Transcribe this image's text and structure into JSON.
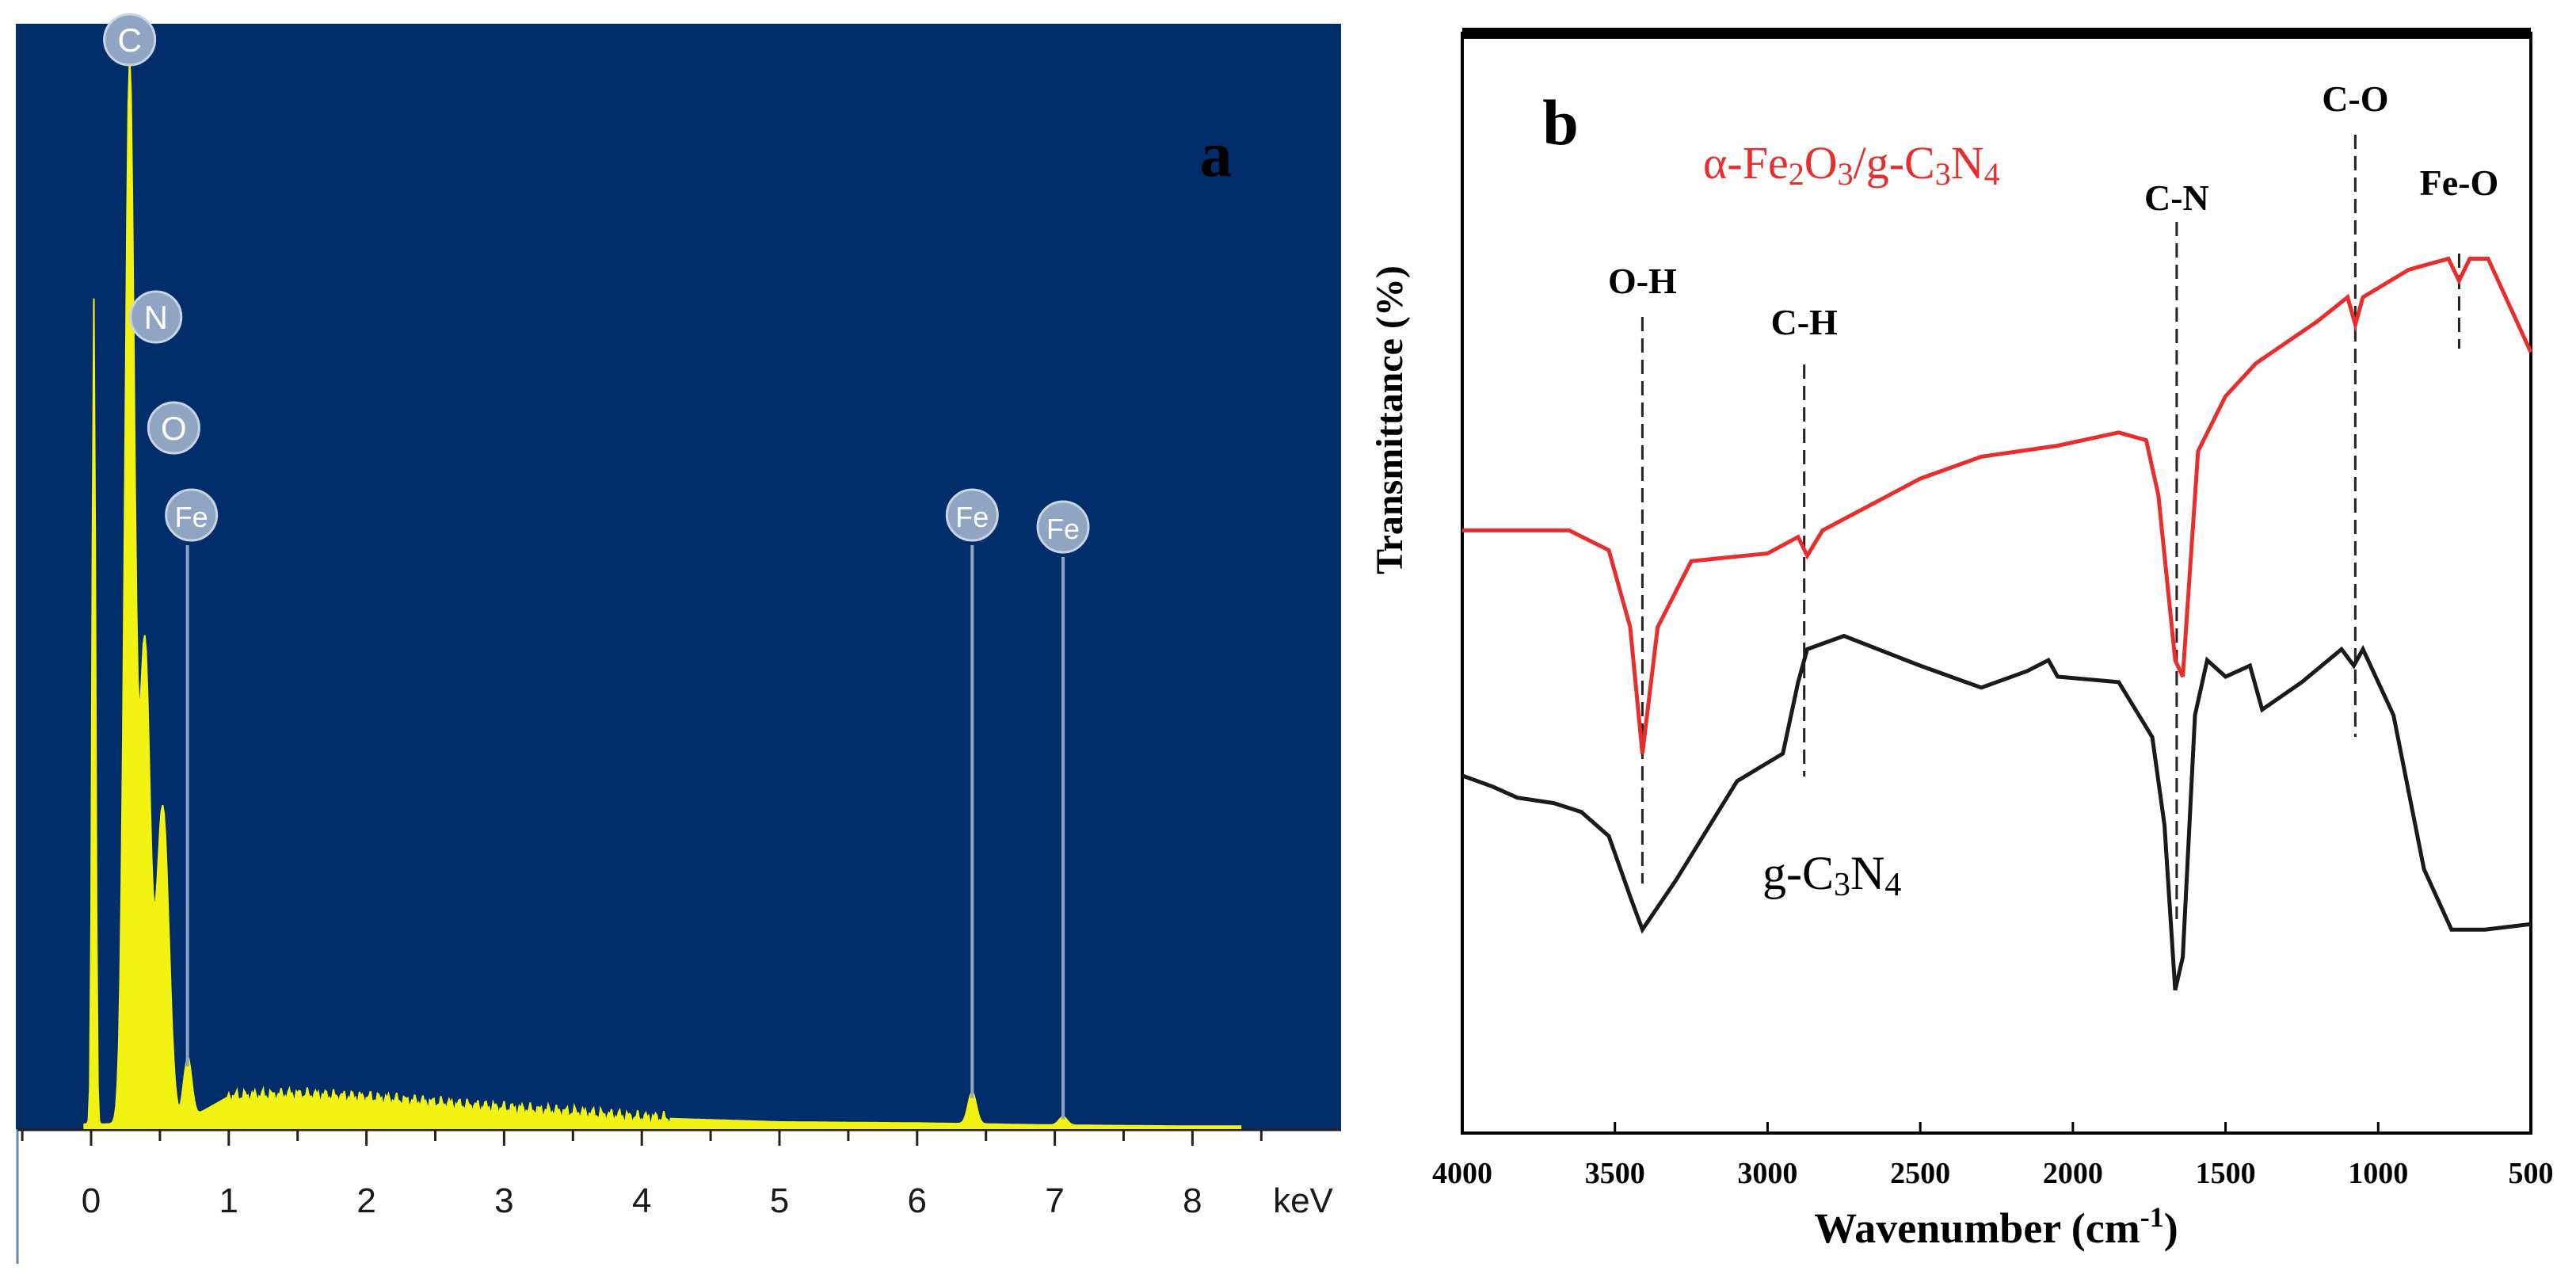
{
  "chart_data": [
    {
      "panel": "a",
      "type": "line",
      "title": "",
      "xlabel": "keV",
      "xlim": [
        -0.5,
        8.7
      ],
      "x_ticks": [
        "0",
        "1",
        "2",
        "3",
        "4",
        "5",
        "6",
        "7",
        "8"
      ],
      "element_peaks": [
        {
          "label": "C",
          "x": 0.28,
          "counts": 1.0
        },
        {
          "label": "N",
          "x": 0.39,
          "counts": 0.45
        },
        {
          "label": "O",
          "x": 0.52,
          "counts": 0.3
        },
        {
          "label": "Fe",
          "x": 0.7,
          "counts": 0.06
        },
        {
          "label": "Fe",
          "x": 6.4,
          "counts": 0.03
        },
        {
          "label": "Fe",
          "x": 7.06,
          "counts": 0.01
        }
      ],
      "extra_peak": {
        "x": 0.02,
        "counts": 0.78
      },
      "background": [
        [
          0.7,
          0.008
        ],
        [
          1.0,
          0.03
        ],
        [
          1.5,
          0.032
        ],
        [
          2.0,
          0.029
        ],
        [
          2.5,
          0.024
        ],
        [
          3.0,
          0.019
        ],
        [
          3.5,
          0.015
        ],
        [
          4.0,
          0.01
        ],
        [
          5.0,
          0.006
        ],
        [
          6.0,
          0.005
        ],
        [
          7.0,
          0.003
        ],
        [
          8.0,
          0.002
        ]
      ],
      "colors": {
        "background": "#022d6b",
        "fill": "#f2f213",
        "label_circle": "#8fa5c1"
      }
    },
    {
      "panel": "b",
      "type": "line",
      "title": "",
      "xlabel_main": "Wavenumber (cm",
      "xlabel_sup": "-1",
      "xlabel_close": ")",
      "ylabel": "Transmittance (%)",
      "xlim": [
        4000,
        500
      ],
      "x_ticks": [
        4000,
        3500,
        3000,
        2500,
        2000,
        1500,
        1000,
        500
      ],
      "series": [
        {
          "name": "α-Fe2O3/g-C3N4",
          "label_parts": [
            "α-Fe",
            "2",
            "O",
            "3",
            "/g-C",
            "3",
            "N",
            "4"
          ],
          "color": "#e82d2d",
          "points": [
            [
              4000,
              0.548
            ],
            [
              3650,
              0.548
            ],
            [
              3520,
              0.53
            ],
            [
              3450,
              0.46
            ],
            [
              3410,
              0.345
            ],
            [
              3360,
              0.46
            ],
            [
              3250,
              0.52
            ],
            [
              3000,
              0.527
            ],
            [
              2900,
              0.542
            ],
            [
              2870,
              0.525
            ],
            [
              2820,
              0.548
            ],
            [
              2500,
              0.595
            ],
            [
              2300,
              0.615
            ],
            [
              2050,
              0.625
            ],
            [
              1850,
              0.637
            ],
            [
              1760,
              0.63
            ],
            [
              1720,
              0.58
            ],
            [
              1665,
              0.43
            ],
            [
              1640,
              0.415
            ],
            [
              1590,
              0.62
            ],
            [
              1500,
              0.67
            ],
            [
              1400,
              0.7
            ],
            [
              1200,
              0.738
            ],
            [
              1100,
              0.76
            ],
            [
              1075,
              0.735
            ],
            [
              1050,
              0.76
            ],
            [
              900,
              0.785
            ],
            [
              770,
              0.795
            ],
            [
              735,
              0.775
            ],
            [
              700,
              0.795
            ],
            [
              640,
              0.795
            ],
            [
              500,
              0.71
            ]
          ]
        },
        {
          "name": "g-C3N4",
          "label_parts": [
            "g-C",
            "3",
            "N",
            "4"
          ],
          "color": "#1a1a1a",
          "points": [
            [
              4000,
              0.325
            ],
            [
              3900,
              0.315
            ],
            [
              3820,
              0.305
            ],
            [
              3700,
              0.3
            ],
            [
              3610,
              0.292
            ],
            [
              3520,
              0.27
            ],
            [
              3450,
              0.215
            ],
            [
              3410,
              0.185
            ],
            [
              3300,
              0.23
            ],
            [
              3100,
              0.32
            ],
            [
              2950,
              0.345
            ],
            [
              2900,
              0.41
            ],
            [
              2870,
              0.44
            ],
            [
              2750,
              0.452
            ],
            [
              2500,
              0.425
            ],
            [
              2300,
              0.405
            ],
            [
              2150,
              0.42
            ],
            [
              2080,
              0.43
            ],
            [
              2050,
              0.415
            ],
            [
              1850,
              0.41
            ],
            [
              1740,
              0.36
            ],
            [
              1700,
              0.28
            ],
            [
              1665,
              0.13
            ],
            [
              1640,
              0.16
            ],
            [
              1600,
              0.38
            ],
            [
              1560,
              0.43
            ],
            [
              1500,
              0.415
            ],
            [
              1420,
              0.425
            ],
            [
              1380,
              0.385
            ],
            [
              1250,
              0.41
            ],
            [
              1120,
              0.44
            ],
            [
              1080,
              0.425
            ],
            [
              1050,
              0.44
            ],
            [
              950,
              0.38
            ],
            [
              850,
              0.24
            ],
            [
              760,
              0.185
            ],
            [
              650,
              0.185
            ],
            [
              500,
              0.19
            ]
          ]
        }
      ],
      "annotations": [
        {
          "text": "O-H",
          "x": 3410
        },
        {
          "text": "C-H",
          "x": 2880
        },
        {
          "text": "C-N",
          "x": 1660
        },
        {
          "text": "C-O",
          "x": 1075
        },
        {
          "text": "Fe-O",
          "x": 735
        }
      ]
    }
  ],
  "panel_labels": {
    "a": "a",
    "b": "b"
  }
}
